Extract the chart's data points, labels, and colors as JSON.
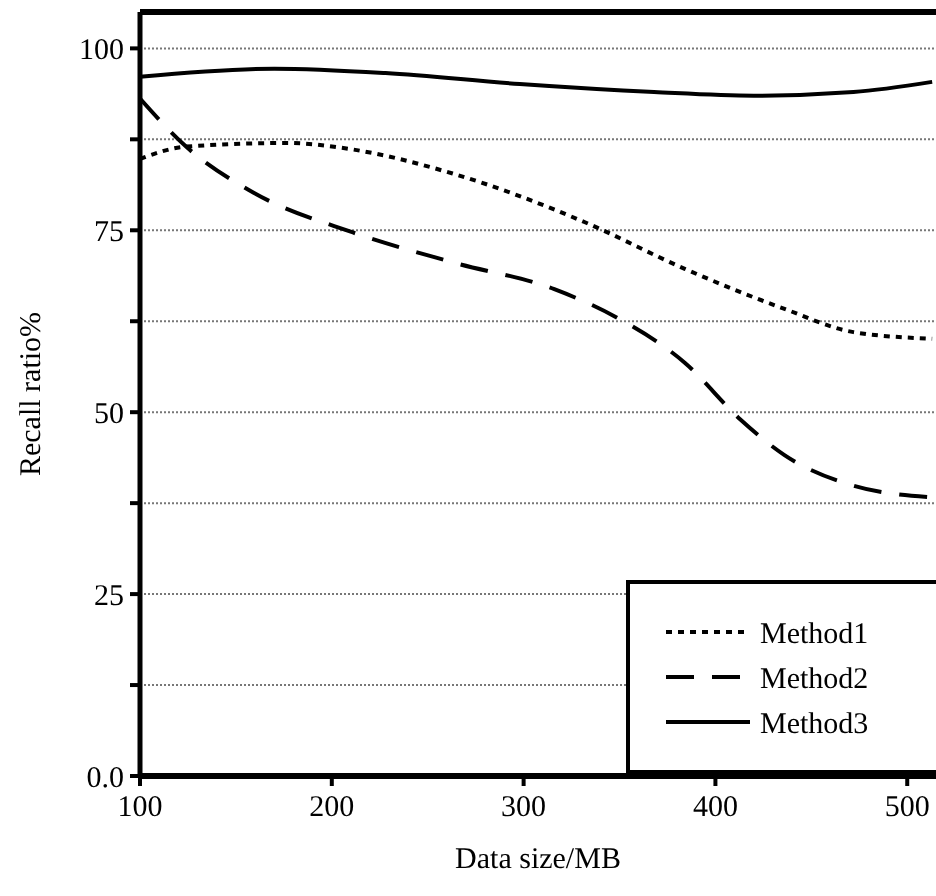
{
  "chart_data": {
    "type": "line",
    "xlabel": "Data size/MB",
    "ylabel": "Recall ratio%",
    "xlim": [
      100,
      515
    ],
    "xticks": [
      100,
      200,
      300,
      400,
      500
    ],
    "ylim": [
      0,
      105
    ],
    "yticks": [
      {
        "value": 0,
        "label": "0.0"
      },
      {
        "value": 12.5,
        "label": null
      },
      25,
      {
        "value": 37.5,
        "label": null
      },
      50,
      {
        "value": 62.5,
        "label": null
      },
      75,
      {
        "value": 87.5,
        "label": null
      },
      100
    ],
    "grid": "y",
    "legend": "bottom right",
    "series": [
      {
        "name": "Method1",
        "color": "#000000",
        "line_style": "dotted",
        "x": [
          100,
          124,
          176,
          211,
          263,
          332,
          384,
          436,
          472,
          513
        ],
        "values": [
          84.8,
          86.5,
          87.0,
          86.1,
          82.8,
          76.1,
          69.7,
          64.2,
          61.0,
          60.1
        ]
      },
      {
        "name": "Method2",
        "color": "#000000",
        "line_style": "dashed",
        "x": [
          100,
          124,
          159,
          211,
          263,
          316,
          350,
          384,
          413,
          436,
          472,
          513
        ],
        "values": [
          93.1,
          86.5,
          80.2,
          74.7,
          70.6,
          66.9,
          62.8,
          56.8,
          49.0,
          44.1,
          39.9,
          38.3
        ]
      },
      {
        "name": "Method3",
        "color": "#000000",
        "line_style": "solid",
        "x": [
          100,
          170,
          228,
          298,
          368,
          420,
          472,
          513
        ],
        "values": [
          96.1,
          97.2,
          96.6,
          95.1,
          94.0,
          93.5,
          94.0,
          95.4
        ]
      }
    ]
  }
}
